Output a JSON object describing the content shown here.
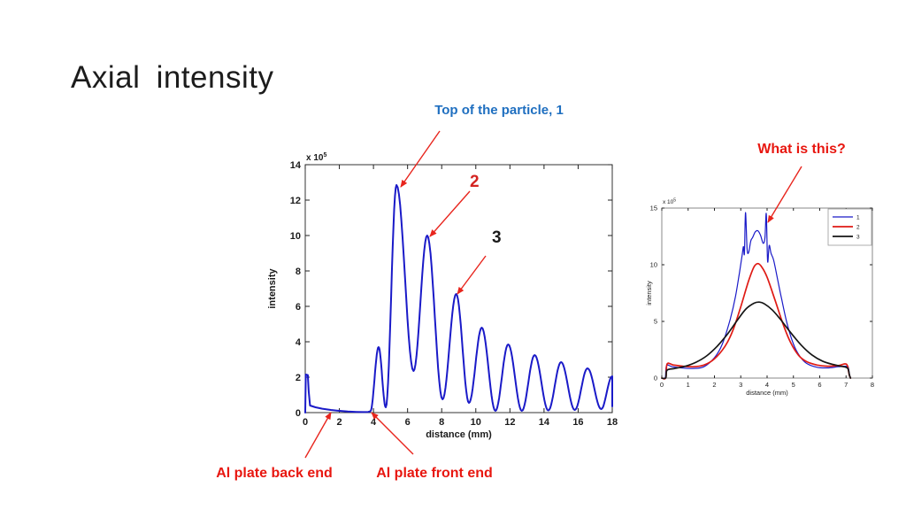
{
  "slide": {
    "title": "Axial intensity",
    "background": "#ffffff"
  },
  "annotations": {
    "top_particle": {
      "text": "Top of the particle, 1",
      "color": "#1f6fc0"
    },
    "what_is_this": {
      "text": "What is this?",
      "color": "#e81710"
    },
    "al_back": {
      "text": "Al plate back end",
      "color": "#e81710"
    },
    "al_front": {
      "text": "Al plate front end",
      "color": "#e81710"
    },
    "peak2": {
      "text": "2",
      "color": "#d42421"
    },
    "peak3": {
      "text": "3",
      "color": "#1a1a1a"
    },
    "arrow_color": "#e8251d"
  },
  "chart_data": [
    {
      "id": "main-axial-plot",
      "type": "line",
      "title": "",
      "xlabel": "distance (mm)",
      "ylabel": "intensity",
      "scale_label": "x 10",
      "scale_exp": "5",
      "xlim": [
        0,
        18
      ],
      "ylim": [
        0,
        14
      ],
      "xticks": [
        0,
        2,
        4,
        6,
        8,
        10,
        12,
        14,
        16,
        18
      ],
      "yticks": [
        0,
        2,
        4,
        6,
        8,
        10,
        12,
        14
      ],
      "grid": false,
      "series": [
        {
          "name": "axial-intensity",
          "color": "#1a1ac8",
          "lead_points": [
            [
              0,
              0
            ],
            [
              0.03,
              2.15
            ],
            [
              0.15,
              2.12
            ],
            [
              0.2,
              1.2
            ],
            [
              0.28,
              0.4
            ],
            [
              0.6,
              0.3
            ],
            [
              1.0,
              0.22
            ],
            [
              1.5,
              0.15
            ],
            [
              2.0,
              0.1
            ],
            [
              2.5,
              0.06
            ],
            [
              3.0,
              0.04
            ],
            [
              3.4,
              0.03
            ],
            [
              3.7,
              0.04
            ],
            [
              3.82,
              0.08
            ]
          ],
          "extrema": [
            [
              3.82,
              0.08
            ],
            [
              4.3,
              3.7
            ],
            [
              4.72,
              0.3
            ],
            [
              5.35,
              12.85
            ],
            [
              6.35,
              2.35
            ],
            [
              7.15,
              10.0
            ],
            [
              8.05,
              0.75
            ],
            [
              8.85,
              6.7
            ],
            [
              9.6,
              0.55
            ],
            [
              10.35,
              4.8
            ],
            [
              11.15,
              0.1
            ],
            [
              11.9,
              3.85
            ],
            [
              12.7,
              0.1
            ],
            [
              13.45,
              3.25
            ],
            [
              14.25,
              0.12
            ],
            [
              15.0,
              2.85
            ],
            [
              15.8,
              0.15
            ],
            [
              16.55,
              2.5
            ],
            [
              17.35,
              0.2
            ],
            [
              18.0,
              2.05
            ]
          ],
          "tail_points": [
            [
              18.0,
              0.35
            ]
          ]
        }
      ]
    },
    {
      "id": "inset-comparison-plot",
      "type": "line",
      "title": "",
      "xlabel": "distance (mm)",
      "ylabel": "intensity",
      "scale_label": "x 10",
      "scale_exp": "5",
      "xlim": [
        0,
        8
      ],
      "ylim": [
        0,
        15
      ],
      "xticks": [
        0,
        1,
        2,
        3,
        4,
        5,
        6,
        7,
        8
      ],
      "yticks": [
        0,
        5,
        10,
        15
      ],
      "grid": false,
      "legend": {
        "position": "top-right",
        "entries": [
          {
            "label": "1",
            "color": "#1a1ac8"
          },
          {
            "label": "2",
            "color": "#df1a14"
          },
          {
            "label": "3",
            "color": "#151515"
          }
        ]
      },
      "series": [
        {
          "name": "1",
          "color": "#1a1ac8",
          "points": [
            [
              0,
              0
            ],
            [
              0.13,
              0.04
            ],
            [
              0.18,
              1.1
            ],
            [
              0.4,
              1.0
            ],
            [
              0.8,
              0.88
            ],
            [
              1.2,
              0.85
            ],
            [
              1.6,
              1.0
            ],
            [
              2.0,
              1.8
            ],
            [
              2.3,
              3.0
            ],
            [
              2.6,
              5.2
            ],
            [
              2.8,
              7.2
            ],
            [
              2.95,
              9.3
            ],
            [
              3.05,
              10.8
            ],
            [
              3.1,
              11.6
            ],
            [
              3.14,
              11.0
            ],
            [
              3.18,
              14.6
            ],
            [
              3.24,
              11.4
            ],
            [
              3.3,
              11.1
            ],
            [
              3.38,
              12.1
            ],
            [
              3.45,
              12.4
            ],
            [
              3.55,
              12.9
            ],
            [
              3.65,
              13.0
            ],
            [
              3.75,
              12.6
            ],
            [
              3.85,
              11.9
            ],
            [
              3.92,
              12.4
            ],
            [
              3.97,
              14.5
            ],
            [
              4.02,
              10.3
            ],
            [
              4.08,
              11.7
            ],
            [
              4.15,
              11.0
            ],
            [
              4.25,
              10.4
            ],
            [
              4.4,
              8.7
            ],
            [
              4.55,
              7.0
            ],
            [
              4.75,
              4.9
            ],
            [
              5.0,
              3.0
            ],
            [
              5.25,
              1.9
            ],
            [
              5.5,
              1.3
            ],
            [
              5.9,
              0.95
            ],
            [
              6.3,
              0.9
            ],
            [
              6.7,
              1.0
            ],
            [
              7.0,
              1.05
            ],
            [
              7.08,
              1.0
            ],
            [
              7.13,
              0.3
            ],
            [
              7.17,
              0
            ]
          ]
        },
        {
          "name": "2",
          "color": "#df1a14",
          "points": [
            [
              0,
              0
            ],
            [
              0.15,
              0.03
            ],
            [
              0.2,
              1.25
            ],
            [
              0.45,
              1.15
            ],
            [
              0.8,
              1.05
            ],
            [
              1.2,
              1.0
            ],
            [
              1.6,
              1.15
            ],
            [
              2.0,
              1.7
            ],
            [
              2.4,
              2.8
            ],
            [
              2.7,
              4.2
            ],
            [
              3.0,
              6.3
            ],
            [
              3.3,
              8.6
            ],
            [
              3.5,
              9.8
            ],
            [
              3.65,
              10.1
            ],
            [
              3.8,
              9.8
            ],
            [
              4.0,
              8.9
            ],
            [
              4.3,
              6.9
            ],
            [
              4.6,
              4.8
            ],
            [
              4.9,
              3.1
            ],
            [
              5.2,
              2.0
            ],
            [
              5.5,
              1.45
            ],
            [
              5.9,
              1.15
            ],
            [
              6.3,
              1.05
            ],
            [
              6.7,
              1.1
            ],
            [
              6.95,
              1.25
            ],
            [
              7.05,
              1.1
            ],
            [
              7.12,
              0.3
            ],
            [
              7.17,
              0
            ]
          ]
        },
        {
          "name": "3",
          "color": "#151515",
          "points": [
            [
              0,
              0
            ],
            [
              0.15,
              0.02
            ],
            [
              0.2,
              0.7
            ],
            [
              0.5,
              0.85
            ],
            [
              0.9,
              1.05
            ],
            [
              1.3,
              1.4
            ],
            [
              1.7,
              1.95
            ],
            [
              2.1,
              2.8
            ],
            [
              2.5,
              3.9
            ],
            [
              2.9,
              5.2
            ],
            [
              3.2,
              6.1
            ],
            [
              3.5,
              6.6
            ],
            [
              3.7,
              6.7
            ],
            [
              3.9,
              6.55
            ],
            [
              4.2,
              6.0
            ],
            [
              4.5,
              5.2
            ],
            [
              4.9,
              4.0
            ],
            [
              5.3,
              2.9
            ],
            [
              5.7,
              2.05
            ],
            [
              6.1,
              1.5
            ],
            [
              6.5,
              1.2
            ],
            [
              6.8,
              1.05
            ],
            [
              7.0,
              0.95
            ],
            [
              7.08,
              0.8
            ],
            [
              7.13,
              0.25
            ],
            [
              7.17,
              0
            ]
          ]
        }
      ]
    }
  ]
}
